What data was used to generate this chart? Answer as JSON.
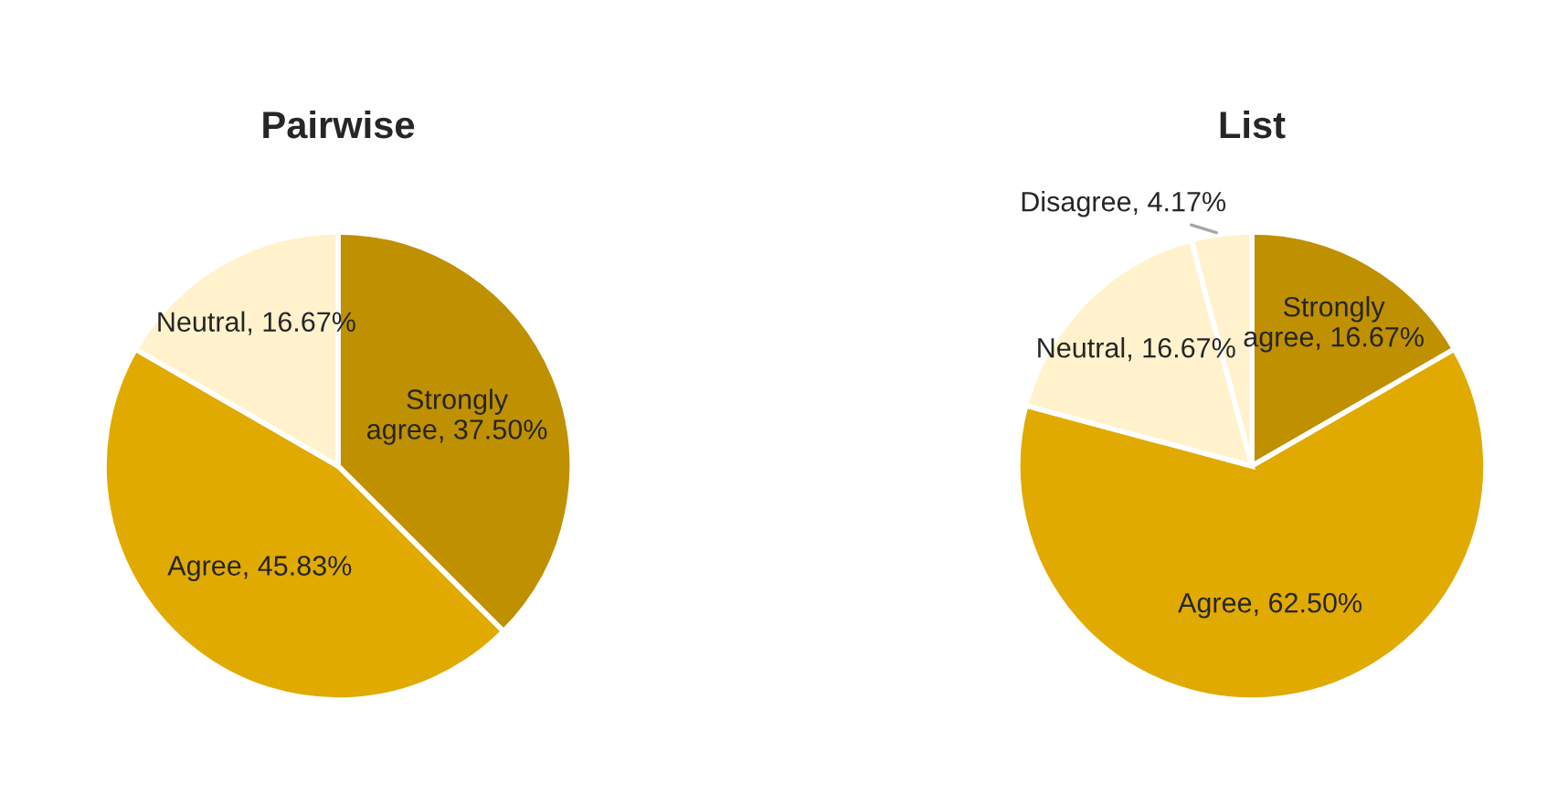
{
  "chart_data": [
    {
      "type": "pie",
      "title": "Pairwise",
      "categories": [
        "Strongly agree",
        "Agree",
        "Neutral"
      ],
      "values": [
        37.5,
        45.83,
        16.67
      ],
      "value_labels": [
        "37.50%",
        "45.83%",
        "16.67%"
      ],
      "colors": [
        "#bf9000",
        "#e0aa00",
        "#fff2cc"
      ],
      "legend": false
    },
    {
      "type": "pie",
      "title": "List",
      "categories": [
        "Strongly agree",
        "Agree",
        "Neutral",
        "Disagree"
      ],
      "values": [
        16.67,
        62.5,
        16.67,
        4.17
      ],
      "value_labels": [
        "16.67%",
        "62.50%",
        "16.67%",
        "4.17%"
      ],
      "colors": [
        "#bf9000",
        "#e0aa00",
        "#fff2cc",
        "#fff2cc"
      ],
      "legend": false
    }
  ]
}
